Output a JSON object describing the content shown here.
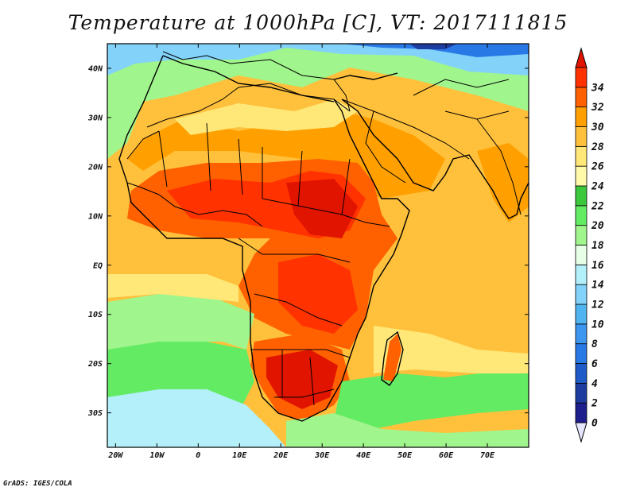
{
  "title": "Temperature at 1000hPa [C], VT: 2017111815",
  "credit": "GrADS: IGES/COLA",
  "map": {
    "lon_range": [
      -22,
      80
    ],
    "lat_range": [
      -37,
      45
    ],
    "lon_ticks": [
      {
        "value": -20,
        "label": "20W"
      },
      {
        "value": -10,
        "label": "10W"
      },
      {
        "value": 0,
        "label": "0"
      },
      {
        "value": 10,
        "label": "10E"
      },
      {
        "value": 20,
        "label": "20E"
      },
      {
        "value": 30,
        "label": "30E"
      },
      {
        "value": 40,
        "label": "40E"
      },
      {
        "value": 50,
        "label": "50E"
      },
      {
        "value": 60,
        "label": "60E"
      },
      {
        "value": 70,
        "label": "70E"
      }
    ],
    "lat_ticks": [
      {
        "value": 40,
        "label": "40N"
      },
      {
        "value": 30,
        "label": "30N"
      },
      {
        "value": 20,
        "label": "20N"
      },
      {
        "value": 10,
        "label": "10N"
      },
      {
        "value": 0,
        "label": "EQ"
      },
      {
        "value": -10,
        "label": "10S"
      },
      {
        "value": -20,
        "label": "20S"
      },
      {
        "value": -30,
        "label": "30S"
      }
    ]
  },
  "colorbar": {
    "levels": [
      0,
      2,
      4,
      6,
      8,
      10,
      12,
      14,
      16,
      18,
      20,
      22,
      24,
      26,
      28,
      30,
      32,
      34
    ],
    "labels": [
      "0",
      "2",
      "4",
      "6",
      "8",
      "10",
      "12",
      "14",
      "16",
      "18",
      "20",
      "22",
      "24",
      "26",
      "28",
      "30",
      "32",
      "34"
    ],
    "colors": [
      "#1e1e8c",
      "#1e3ca0",
      "#1e5ac8",
      "#2878e6",
      "#3c96f0",
      "#50b4f0",
      "#82d2fa",
      "#b4f0fa",
      "#e6ffe6",
      "#a0f58c",
      "#64eb64",
      "#3cc83c",
      "#fffaaa",
      "#ffe878",
      "#ffc03c",
      "#ffa000",
      "#ff6000",
      "#ff3200"
    ],
    "under_color": "#e6e6ff",
    "over_color": "#e11400"
  }
}
